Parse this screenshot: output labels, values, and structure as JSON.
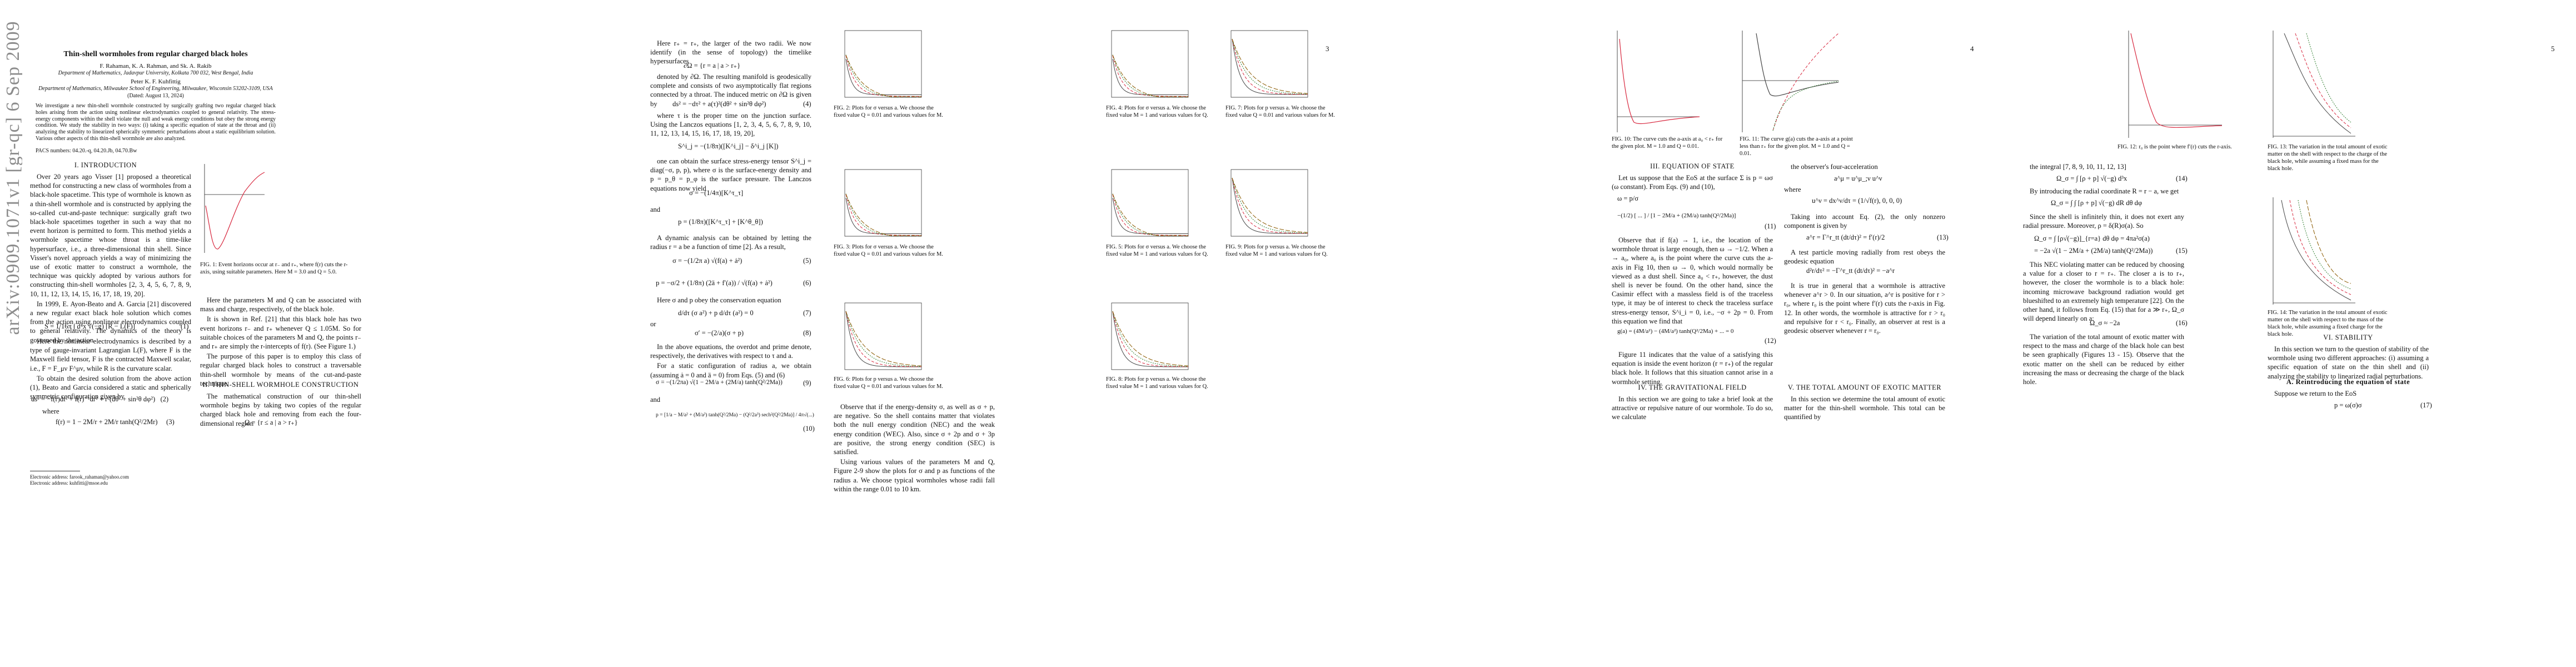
{
  "arxiv_id": "arXiv:0909.1071v1 [gr-qc] 6 Sep 2009",
  "page_numbers": [
    "2",
    "3",
    "4",
    "5"
  ],
  "title": "Thin-shell wormholes from regular charged black holes",
  "authors1": "F. Rahaman,  K. A. Rahman,  and Sk. A. Rakib",
  "affil1": "Department of Mathematics, Jadavpur University, Kolkata 700 032, West Bengal, India",
  "authors2": "Peter K. F. Kuhfittig",
  "affil2": "Department of Mathematics, Milwaukee School of Engineering, Milwaukee, Wisconsin 53202-3109, USA",
  "date": "(Dated: August 13, 2024)",
  "abstract": "We investigate a new thin-shell wormhole constructed by surgically grafting two regular charged black holes arising from the action using nonlinear electrodynamics coupled to general relativity. The stress-energy components within the shell violate the null and weak energy conditions but obey the strong energy condition. We study the stability in two ways: (i) taking a specific equation of state at the throat and (ii) analyzing the stability to linearized spherically symmetric perturbations about a static equilibrium solution. Various other aspects of this thin-shell wormhole are also analyzed.",
  "pacs": "PACS numbers: 04.20.-q, 04.20.Jb, 04.70.Bw",
  "sec1": "I.   INTRODUCTION",
  "intro1": "Over 20 years ago Visser [1] proposed a theoretical method for constructing a new class of wormholes from a black-hole spacetime. This type of wormhole is known as a thin-shell wormhole and is constructed by applying the so-called cut-and-paste technique: surgically graft two black-hole spacetimes together in such a way that no event horizon is permitted to form. This method yields a wormhole spacetime whose throat is a time-like hypersurface, i.e., a three-dimensional thin shell. Since Visser's novel approach yields a way of minimizing the use of exotic matter to construct a wormhole, the technique was quickly adopted by various authors for constructing thin-shell wormholes [2, 3, 4, 5, 6, 7, 8, 9, 10, 11, 12, 13, 14, 15, 16, 17, 18, 19, 20].",
  "intro2": "In 1999, E. Ayon-Beato and A. Garcia [21] discovered a new regular exact black hole solution which comes from the action using nonlinear electrodynamics coupled to general relativity. The dynamics of the theory is governed by the action",
  "eq1": "S = 1/16π ∫ d⁴x √(−g) [R − L(F)]",
  "eq1n": "(1)",
  "intro3": "Here the nonlinear electrodynamics is described by a type of gauge-invariant Lagrangian L(F), where F is the Maxwell field tensor, F is the contracted Maxwell scalar, i.e., F = F_μν F^μν, while R is the curvature scalar.",
  "intro4": "To obtain the desired solution from the above action (1), Beato and Garcia considered a static and spherically symmetric configuration given by",
  "eq2": "ds² = −f(r)dt² + f(r)⁻¹dr² + r²(dθ² + sin²θ dφ²)   (2)",
  "where1": "where",
  "eq3": "f(r) = 1 − 2M/r + 2M/r tanh(Q²/2Mr)     (3)",
  "fn1": "Electronic address: farook_rahaman@yahoo.com",
  "fn2": "Electronic address: kuhfitti@msoe.edu",
  "fig1_cap": "FIG. 1: Event horizons occur at r₋ and r₊, where f(r) cuts the r-axis, using suitable parameters. Here M = 3.0 and Q = 5.0.",
  "col3_a": "Here the parameters M and Q can be associated with mass and charge, respectively, of the black hole.",
  "col3_b": "It is shown in Ref. [21] that this black hole has two event horizons r₋ and r₊ whenever Q ≤ 1.05M. So for suitable choices of the parameters M and Q, the points r₋ and r₊ are simply the r-intercepts of f(r). (See Figure 1.)",
  "col3_c": "The purpose of this paper is to employ this class of regular charged black holes to construct a traversable thin-shell wormhole by means of the cut-and-paste technique.",
  "sec2": "II.   THIN-SHELL WORMHOLE CONSTRUCTION",
  "col3_d": "The mathematical construction of our thin-shell wormhole begins by taking two copies of the regular charged black hole and removing from each the four-dimensional region",
  "col3_eq": "Ω = {r ≤ a | a > r₊}",
  "col4_a": "Here r₊ = r₊, the larger of the two radii. We now identify (in the sense of topology) the timelike hypersurfaces",
  "col4_eq1": "∂Ω = {r = a | a > r₊}",
  "col4_b": "denoted by ∂Ω. The resulting manifold is geodesically complete and consists of two asymptotically flat regions connected by a throat. The induced metric on ∂Ω is given by",
  "col4_eq2": "ds² = −dτ² + a(τ)²(dθ² + sin²θ dφ²)",
  "col4_eq2n": "(4)",
  "col4_c": "where τ is the proper time on the junction surface. Using the Lanczos equations [1, 2, 3, 4, 5, 6, 7, 8, 9, 10, 11, 12, 13, 14, 15, 16, 17, 18, 19, 20],",
  "col4_eq3": "S^i_j = −(1/8π)([K^i_j] − δ^i_j [K])",
  "col4_d": "one can obtain the surface stress-energy tensor S^i_j = diag(−σ, p, p), where σ is the surface-energy density and p = p_θ = p_φ is the surface pressure. The Lanczos equations now yield",
  "col4_eq4": "σ = −(1/4π)[K^τ_τ]",
  "and": "and",
  "col4_eq5": "p = (1/8π)([K^τ_τ] + [K^θ_θ])",
  "col4_e": "A dynamic analysis can be obtained by letting the radius r = a be a function of time [2]. As a result,",
  "col4_eq6": "σ = −(1/2π a) √(f(a) + ȧ²)",
  "col4_eq6n": "(5)",
  "col4_eq7": "p = −σ/2 + (1/8π) (2ä + f′(a)) / √(f(a) + ȧ²)",
  "col4_eq7n": "(6)",
  "col4_f": "Here σ and p obey the conservation equation",
  "col4_eq8": "d/dτ (σ a²) + p d/dτ (a²) = 0",
  "col4_eq8n": "(7)",
  "or": "or",
  "col4_eq9": "σ′ = −(2/a)(σ + p)",
  "col4_eq9n": "(8)",
  "col4_g": "In the above equations, the overdot and prime denote, respectively, the derivatives with respect to τ and a.",
  "col4_h": "For a static configuration of radius a, we obtain (assuming ȧ = 0 and ä = 0) from Eqs. (5) and (6)",
  "col4_eq10": "σ = −(1/2πa) √(1 − 2M/a + (2M/a) tanh(Q²/2Ma))",
  "col4_eq10n": "(9)",
  "col4_eq11": "p = [1/a − M/a² + (M/a²) tanh(Q²/2Ma) − (Q²/2a³) sech²(Q²/2Ma)] / 4π√(...)",
  "col4_eq11n": "(10)",
  "fig2_cap": "FIG. 2: Plots for σ versus a. We choose the fixed value Q = 0.01 and various values for M.",
  "fig3_cap": "FIG. 3: Plots for σ versus a. We choose the fixed value Q = 0.01 and various values for M.",
  "fig4_cap": "FIG. 4: Plots for σ versus a. We choose the fixed value M = 1 and various values for Q.",
  "fig5_cap": "FIG. 5: Plots for σ versus a. We choose the fixed value M = 1 and various values for Q.",
  "fig6_cap": "FIG. 6: Plots for p versus a. We choose the fixed value Q = 0.01 and various values for M.",
  "fig7_cap": "FIG. 7: Plots for p versus a. We choose the fixed value Q = 0.01 and various values for M.",
  "fig8_cap": "FIG. 8: Plots for p versus a. We choose the fixed value M = 1 and various values for Q.",
  "fig9_cap": "FIG. 9: Plots for p versus a. We choose the fixed value M = 1 and various values for Q.",
  "col6_a": "Observe that if the energy-density σ, as well as σ + p, are negative. So the shell contains matter that violates both the null energy condition (NEC) and the weak energy condition (WEC). Also, since σ + 2p and σ + 3p are positive, the strong energy condition (SEC) is satisfied.",
  "col6_b": "Using various values of the parameters M and Q, Figure 2-9 show the plots for σ and p as functions of the radius a. We choose typical wormholes whose radii fall within the range 0.01 to 10 km.",
  "fig10_cap": "FIG. 10: The curve cuts the a-axis at a₀ < r₊ for the given plot. M = 1.0 and Q = 0.01.",
  "fig11_cap": "FIG. 11: The curve g(a) cuts the a-axis at a point less than r₊ for the given plot. M = 1.0 and Q = 0.01.",
  "sec3": "III.   EQUATION OF STATE",
  "col7_a": "Let us suppose that the EoS at the surface Σ is p = ωσ (ω constant). From Eqs. (9) and (10),",
  "col7_eq1": "ω = p/σ",
  "col7_eq2": "−(1/2) [ ... ] / [1 − 2M/a + (2M/a) tanh(Q²/2Ma)]",
  "col7_eq2n": "(11)",
  "col7_b": "Observe that if f(a) → 1, i.e., the location of the wormhole throat is large enough, then ω → −1/2. When a → a₀, where a₀ is the point where the curve cuts the a-axis in Fig 10, then ω → 0, which would normally be viewed as a dust shell. Since a₀ < r₊, however, the dust shell is never be found. On the other hand, since the Casimir effect with a massless field is of the traceless type, it may be of interest to check the traceless surface stress-energy tensor, S^i_i = 0, i.e., −σ + 2p = 0. From this equation we find that",
  "col7_eq3": "g(a) = (4M/a²) − (4M/a²) tanh(Q²/2Ma) + ... = 0",
  "col7_eq3n": "(12)",
  "col7_c": "Figure 11 indicates that the value of a satisfying this equation is inside the event horizon (r = r₊) of the regular black hole. It follows that this situation cannot arise in a wormhole setting.",
  "sec4": "IV.   THE GRAVITATIONAL FIELD",
  "col7_d": "In this section we are going to take a brief look at the attractive or repulsive nature of our wormhole. To do so, we calculate",
  "col8_a": "the observer's four-acceleration",
  "col8_eq1": "a^μ = u^μ_;ν u^ν",
  "where": "where",
  "col8_eq2": "u^ν = dx^ν/dτ = (1/√f(r), 0, 0, 0)",
  "col8_b": "Taking into account Eq. (2), the only nonzero component is given by",
  "col8_eq3": "a^r = Γ^r_tt (dt/dτ)² = f′(r)/2",
  "col8_eq3n": "(13)",
  "col8_c": "A test particle moving radially from rest obeys the geodesic equation",
  "col8_eq4": "d²r/dτ² = −Γ^r_tt (dt/dτ)² = −a^r",
  "col8_d": "It is true in general that a wormhole is attractive whenever a^r > 0. In our situation, a^r is positive for r > r₀, where r₀ is the point where f′(r) cuts the r-axis in Fig. 12. In other words, the wormhole is attractive for r > r₀ and repulsive for r < r₀. Finally, an observer at rest is a geodesic observer whenever r = r₀.",
  "sec5": "V.   THE TOTAL AMOUNT OF EXOTIC MATTER",
  "col8_e": "In this section we determine the total amount of exotic matter for the thin-shell wormhole. This total can be quantified by",
  "fig12_cap": "FIG. 12: r₀ is the point where f′(r) cuts the r-axis.",
  "fig13_cap": "FIG. 13: The variation in the total amount of exotic matter on the shell with respect to the charge of the black hole, while assuming a fixed mass for the black hole.",
  "fig14_cap": "FIG. 14: The variation in the total amount of exotic matter on the shell with respect to the mass of the black hole, while assuming a fixed charge for the black hole.",
  "col9_a": "the integral [7, 8, 9, 10, 11, 12, 13]",
  "col9_eq1": "Ω_σ = ∫ [ρ + p] √(−g) d³x",
  "col9_eq1n": "(14)",
  "col9_b": "By introducing the radial coordinate R = r − a, we get",
  "col9_eq2": "Ω_σ = ∫ ∫ [ρ + p] √(−g) dR dθ dφ",
  "col9_c": "Since the shell is infinitely thin, it does not exert any radial pressure. Moreover, ρ = δ(R)σ(a). So",
  "col9_eq3": "Ω_σ = ∫ [ρ√(−g)]_{r=a} dθ dφ = 4πa²σ(a)",
  "col9_eq4": "= −2a √(1 − 2M/a + (2M/a) tanh(Q²/2Ma))",
  "col9_eq4n": "(15)",
  "col9_d": "This NEC violating matter can be reduced by choosing a value for a closer to r = r₊. The closer a is to r₊, however, the closer the wormhole is to a black hole: incoming microwave background radiation would get blueshifted to an extremely high temperature [22]. On the other hand, it follows from Eq. (15) that for a ≫ r₊, Ω_σ will depend linearly on a:",
  "col9_eq5": "Ω_σ ≈ −2a",
  "col9_eq5n": "(16)",
  "col9_e": "The variation of the total amount of exotic matter with respect to the mass and charge of the black hole can best be seen graphically (Figures 13 - 15). Observe that the exotic matter on the shell can be reduced by either increasing the mass or decreasing the charge of the black hole.",
  "sec6": "VI.   STABILITY",
  "col10_a": "In this section we turn to the question of stability of the wormhole using two different approaches: (i) assuming a specific equation of state on the thin shell and (ii) analyzing the stability to linearized radial perturbations.",
  "sec6a": "A.   Reintroducing the equation of state",
  "col10_b": "Suppose we return to the EoS",
  "col10_eq": "p = ω(σ)σ",
  "col10_eqn": "(17)",
  "chart_data": [
    {
      "type": "line",
      "title": "",
      "series": [
        {
          "name": "f(r)",
          "color": "#d7263d"
        }
      ]
    },
    {
      "type": "line",
      "title": "",
      "series": [
        {
          "name": "",
          "color": "#444"
        },
        {
          "name": "",
          "color": "#d7263d"
        },
        {
          "name": "",
          "color": "#2a7a2a"
        },
        {
          "name": "",
          "color": "#8a5a00"
        }
      ]
    }
  ]
}
